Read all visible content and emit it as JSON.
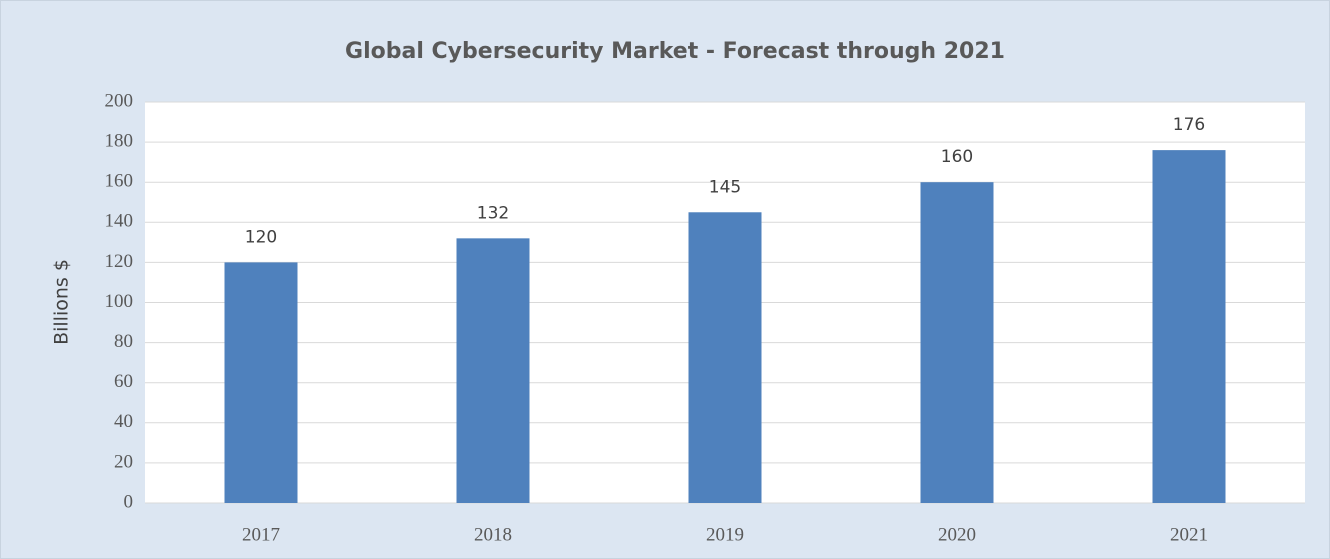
{
  "chart_data": {
    "type": "bar",
    "title": "Global Cybersecurity Market - Forecast through 2021",
    "y_label": "Billions $",
    "categories": [
      "2017",
      "2018",
      "2019",
      "2020",
      "2021"
    ],
    "values": [
      120,
      132,
      145,
      160,
      176
    ],
    "color": "#4f81bd",
    "ylim": [
      0,
      200
    ],
    "yticks": [
      0,
      20,
      40,
      60,
      80,
      100,
      120,
      140,
      160,
      180,
      200
    ],
    "grid": true
  }
}
